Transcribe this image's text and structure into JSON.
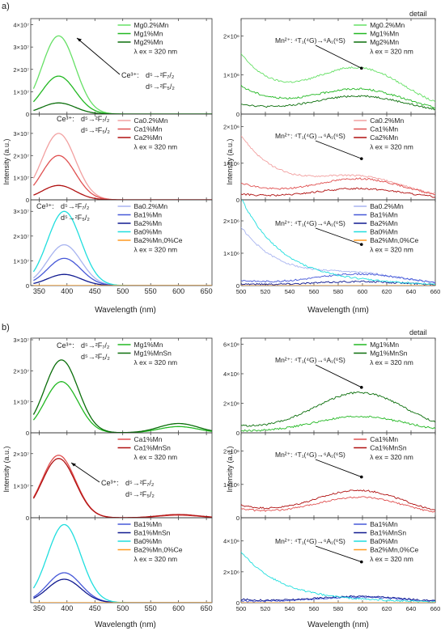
{
  "figure": {
    "part_a_label": "a)",
    "part_b_label": "b)",
    "detail_label": "detail",
    "y_axis_label": "Intensity (a.u.)",
    "x_axis_label": "Wavelength (nm)",
    "excitation": "λ ex = 320 nm"
  },
  "annotations": {
    "ce_prefix": "Ce³⁺:",
    "ce_line1": "d⁵→²F₇/₂",
    "ce_line2": "d⁵→²F₅/₂",
    "mn": "Mn²⁺: ⁴T₁(⁴G)→⁶A₁(⁶S)"
  },
  "colors": {
    "mg_light": "#66e066",
    "mg_mid": "#22b822",
    "mg_dark": "#0a6e0a",
    "ca_light": "#f2a0a0",
    "ca_mid": "#e05050",
    "ca_dark": "#b01010",
    "ba_light": "#a8b4f0",
    "ba_mid": "#4658d8",
    "ba_dark": "#101a90",
    "ba0": "#20dede",
    "ce0": "#ff9a20"
  },
  "chart_data": [
    {
      "id": "a-left-mg",
      "type": "line",
      "xlim": [
        335,
        660
      ],
      "ylim": [
        0,
        42000000.0
      ],
      "x_ticks": [
        "350",
        "400",
        "450",
        "500",
        "550",
        "600",
        "650"
      ],
      "y_ticks": [
        {
          "label": "0",
          "value": 0
        },
        {
          "label": "1×10⁷",
          "value": 10000000.0
        },
        {
          "label": "2×10⁷",
          "value": 20000000.0
        },
        {
          "label": "3×10⁷",
          "value": 30000000.0
        },
        {
          "label": "4×10⁷",
          "value": 40000000.0
        }
      ],
      "series": [
        {
          "name": "Mg0.2%Mn",
          "color": "#66e066",
          "peak_x": 385,
          "peak_y": 35000000.0
        },
        {
          "name": "Mg1%Mn",
          "color": "#22b822",
          "peak_x": 385,
          "peak_y": 17000000.0
        },
        {
          "name": "Mg2%Mn",
          "color": "#0a6e0a",
          "peak_x": 385,
          "peak_y": 5000000.0
        }
      ]
    },
    {
      "id": "a-left-ca",
      "type": "line",
      "xlim": [
        335,
        660
      ],
      "ylim": [
        0,
        38000000.0
      ],
      "x_ticks": [
        "350",
        "400",
        "450",
        "500",
        "550",
        "600",
        "650"
      ],
      "y_ticks": [
        {
          "label": "0",
          "value": 0
        },
        {
          "label": "1×10⁷",
          "value": 10000000.0
        },
        {
          "label": "2×10⁷",
          "value": 20000000.0
        },
        {
          "label": "3×10⁷",
          "value": 30000000.0
        }
      ],
      "series": [
        {
          "name": "Ca0.2%Mn",
          "color": "#f2a0a0",
          "peak_x": 385,
          "peak_y": 30000000.0
        },
        {
          "name": "Ca1%Mn",
          "color": "#e05050",
          "peak_x": 385,
          "peak_y": 20000000.0
        },
        {
          "name": "Ca2%Mn",
          "color": "#b01010",
          "peak_x": 385,
          "peak_y": 6500000.0
        }
      ]
    },
    {
      "id": "a-left-ba",
      "type": "line",
      "xlim": [
        335,
        660
      ],
      "ylim": [
        0,
        34000000.0
      ],
      "x_ticks": [
        "350",
        "400",
        "450",
        "500",
        "550",
        "600",
        "650"
      ],
      "y_ticks": [
        {
          "label": "0",
          "value": 0
        },
        {
          "label": "1×10⁷",
          "value": 10000000.0
        },
        {
          "label": "2×10⁷",
          "value": 20000000.0
        },
        {
          "label": "3×10⁷",
          "value": 30000000.0
        }
      ],
      "series": [
        {
          "name": "Ba0.2%Mn",
          "color": "#a8b4f0",
          "peak_x": 395,
          "peak_y": 16500000.0
        },
        {
          "name": "Ba1%Mn",
          "color": "#4658d8",
          "peak_x": 395,
          "peak_y": 11000000.0
        },
        {
          "name": "Ba2%Mn",
          "color": "#101a90",
          "peak_x": 395,
          "peak_y": 4500000.0
        },
        {
          "name": "Ba0%Mn",
          "color": "#20dede",
          "peak_x": 395,
          "peak_y": 30000000.0
        },
        {
          "name": "Ba2%Mn,0%Ce",
          "color": "#ff9a20",
          "peak_x": 395,
          "peak_y": 0.0
        }
      ]
    },
    {
      "id": "a-right-mg",
      "type": "line",
      "xlim": [
        500,
        660
      ],
      "ylim": [
        0,
        2400000.0
      ],
      "x_ticks": [
        "500",
        "520",
        "540",
        "560",
        "580",
        "600",
        "620",
        "640",
        "660"
      ],
      "y_ticks": [
        {
          "label": "0",
          "value": 0
        },
        {
          "label": "1×10⁶",
          "value": 1000000.0
        },
        {
          "label": "2×10⁶",
          "value": 2000000.0
        }
      ],
      "series": [
        {
          "name": "Mg0.2%Mn",
          "color": "#66e066",
          "start_y": 1500000.0,
          "mn_y": 1100000.0
        },
        {
          "name": "Mg1%Mn",
          "color": "#22b822",
          "start_y": 700000.0,
          "mn_y": 600000.0
        },
        {
          "name": "Mg2%Mn",
          "color": "#0a6e0a",
          "start_y": 250000.0,
          "mn_y": 450000.0
        }
      ]
    },
    {
      "id": "a-right-ca",
      "type": "line",
      "xlim": [
        500,
        660
      ],
      "ylim": [
        0,
        2300000.0
      ],
      "x_ticks": [
        "500",
        "520",
        "540",
        "560",
        "580",
        "600",
        "620",
        "640",
        "660"
      ],
      "y_ticks": [
        {
          "label": "0",
          "value": 0
        },
        {
          "label": "1×10⁶",
          "value": 1000000.0
        },
        {
          "label": "2×10⁶",
          "value": 2000000.0
        }
      ],
      "series": [
        {
          "name": "Ca0.2%Mn",
          "color": "#f2a0a0",
          "start_y": 1750000.0,
          "mn_y": 550000.0
        },
        {
          "name": "Ca1%Mn",
          "color": "#e05050",
          "start_y": 450000.0,
          "mn_y": 550000.0
        },
        {
          "name": "Ca2%Mn",
          "color": "#b01010",
          "start_y": 150000.0,
          "mn_y": 300000.0
        }
      ]
    },
    {
      "id": "a-right-ba",
      "type": "line",
      "xlim": [
        500,
        660
      ],
      "ylim": [
        0,
        2600000.0
      ],
      "x_ticks": [
        "500",
        "520",
        "540",
        "560",
        "580",
        "600",
        "620",
        "640",
        "660"
      ],
      "y_ticks": [
        {
          "label": "0",
          "value": 0
        },
        {
          "label": "1×10⁶",
          "value": 1000000.0
        },
        {
          "label": "2×10⁶",
          "value": 2000000.0
        }
      ],
      "series": [
        {
          "name": "Ba0.2%Mn",
          "color": "#a8b4f0",
          "start_y": 1800000.0,
          "mn_y": 300000.0
        },
        {
          "name": "Ba1%Mn",
          "color": "#4658d8",
          "start_y": 150000.0,
          "mn_y": 350000.0
        },
        {
          "name": "Ba2%Mn",
          "color": "#101a90",
          "start_y": 50000.0,
          "mn_y": 120000.0
        },
        {
          "name": "Ba0%Mn",
          "color": "#20dede",
          "start_y": 2700000.0,
          "mn_y": 50000.0
        },
        {
          "name": "Ba2%Mn,0%Ce",
          "color": "#ff9a20",
          "start_y": 0.0,
          "mn_y": 0.0
        }
      ]
    },
    {
      "id": "b-left-mg",
      "type": "line",
      "xlim": [
        335,
        660
      ],
      "ylim": [
        0,
        30000000.0
      ],
      "x_ticks": [
        "350",
        "400",
        "450",
        "500",
        "550",
        "600",
        "650"
      ],
      "y_ticks": [
        {
          "label": "0",
          "value": 0
        },
        {
          "label": "1×10⁷",
          "value": 10000000.0
        },
        {
          "label": "2×10⁷",
          "value": 20000000.0
        },
        {
          "label": "3×10⁷",
          "value": 30000000.0
        }
      ],
      "series": [
        {
          "name": "Mg1%Mn",
          "color": "#22b822",
          "peak_x": 390,
          "peak_y": 16500000.0,
          "mn_y": 2000000.0
        },
        {
          "name": "Mg1%MnSn",
          "color": "#0a6e0a",
          "peak_x": 390,
          "peak_y": 23500000.0,
          "mn_y": 3000000.0
        }
      ]
    },
    {
      "id": "b-left-ca",
      "type": "line",
      "xlim": [
        335,
        660
      ],
      "ylim": [
        0,
        26000000.0
      ],
      "x_ticks": [
        "350",
        "400",
        "450",
        "500",
        "550",
        "600",
        "650"
      ],
      "y_ticks": [
        {
          "label": "0",
          "value": 0
        },
        {
          "label": "1×10⁷",
          "value": 10000000.0
        },
        {
          "label": "2×10⁷",
          "value": 20000000.0
        }
      ],
      "series": [
        {
          "name": "Ca1%Mn",
          "color": "#e05050",
          "peak_x": 385,
          "peak_y": 19500000.0,
          "mn_y": 800000.0
        },
        {
          "name": "Ca1%MnSn",
          "color": "#b01010",
          "peak_x": 385,
          "peak_y": 18500000.0,
          "mn_y": 1000000.0
        }
      ]
    },
    {
      "id": "b-left-ba",
      "type": "line",
      "xlim": [
        335,
        660
      ],
      "ylim": [
        0,
        32000000.0
      ],
      "x_ticks": [
        "350",
        "400",
        "450",
        "500",
        "550",
        "600",
        "650"
      ],
      "y_ticks": [],
      "series": [
        {
          "name": "Ba1%Mn",
          "color": "#4658d8",
          "peak_x": 395,
          "peak_y": 11500000.0
        },
        {
          "name": "Ba1%MnSn",
          "color": "#101a90",
          "peak_x": 395,
          "peak_y": 9000000.0
        },
        {
          "name": "Ba0%Mn",
          "color": "#20dede",
          "peak_x": 395,
          "peak_y": 30000000.0
        },
        {
          "name": "Ba2%Mn,0%Ce",
          "color": "#ff9a20",
          "peak_x": 395,
          "peak_y": 0.0
        }
      ]
    },
    {
      "id": "b-right-mg",
      "type": "line",
      "xlim": [
        500,
        660
      ],
      "ylim": [
        0,
        6300000.0
      ],
      "x_ticks": [
        "500",
        "520",
        "540",
        "560",
        "580",
        "600",
        "620",
        "640",
        "660"
      ],
      "y_ticks": [
        {
          "label": "0",
          "value": 0
        },
        {
          "label": "2×10⁶",
          "value": 2000000.0
        },
        {
          "label": "4×10⁶",
          "value": 4000000.0
        },
        {
          "label": "6×10⁶",
          "value": 6000000.0
        }
      ],
      "series": [
        {
          "name": "Mg1%Mn",
          "color": "#22b822",
          "start_y": 100000.0,
          "mn_y": 1100000.0
        },
        {
          "name": "Mg1%MnSn",
          "color": "#0a6e0a",
          "start_y": 400000.0,
          "mn_y": 2700000.0
        }
      ]
    },
    {
      "id": "b-right-ca",
      "type": "line",
      "xlim": [
        500,
        660
      ],
      "ylim": [
        0,
        2500000.0
      ],
      "x_ticks": [
        "500",
        "520",
        "540",
        "560",
        "580",
        "600",
        "620",
        "640",
        "660"
      ],
      "y_ticks": [
        {
          "label": "0",
          "value": 0
        },
        {
          "label": "1×10⁶",
          "value": 1000000.0
        },
        {
          "label": "2×10⁶",
          "value": 2000000.0
        }
      ],
      "series": [
        {
          "name": "Ca1%Mn",
          "color": "#e05050",
          "start_y": 250000.0,
          "mn_y": 600000.0
        },
        {
          "name": "Ca1%MnSn",
          "color": "#b01010",
          "start_y": 350000.0,
          "mn_y": 800000.0
        }
      ]
    },
    {
      "id": "b-right-ba",
      "type": "line",
      "xlim": [
        500,
        660
      ],
      "ylim": [
        0,
        5400000.0
      ],
      "x_ticks": [
        "500",
        "520",
        "540",
        "560",
        "580",
        "600",
        "620",
        "640",
        "660"
      ],
      "y_ticks": [
        {
          "label": "0",
          "value": 0
        },
        {
          "label": "2×10⁶",
          "value": 2000000.0
        },
        {
          "label": "4×10⁶",
          "value": 4000000.0
        }
      ],
      "series": [
        {
          "name": "Ba1%Mn",
          "color": "#4658d8",
          "start_y": 100000.0,
          "mn_y": 350000.0
        },
        {
          "name": "Ba1%MnSn",
          "color": "#101a90",
          "start_y": 200000.0,
          "mn_y": 400000.0
        },
        {
          "name": "Ba0%Mn",
          "color": "#20dede",
          "start_y": 3300000.0,
          "mn_y": 50000.0
        },
        {
          "name": "Ba2%Mn,0%Ce",
          "color": "#ff9a20",
          "start_y": 0.0,
          "mn_y": 0.0
        }
      ]
    }
  ]
}
